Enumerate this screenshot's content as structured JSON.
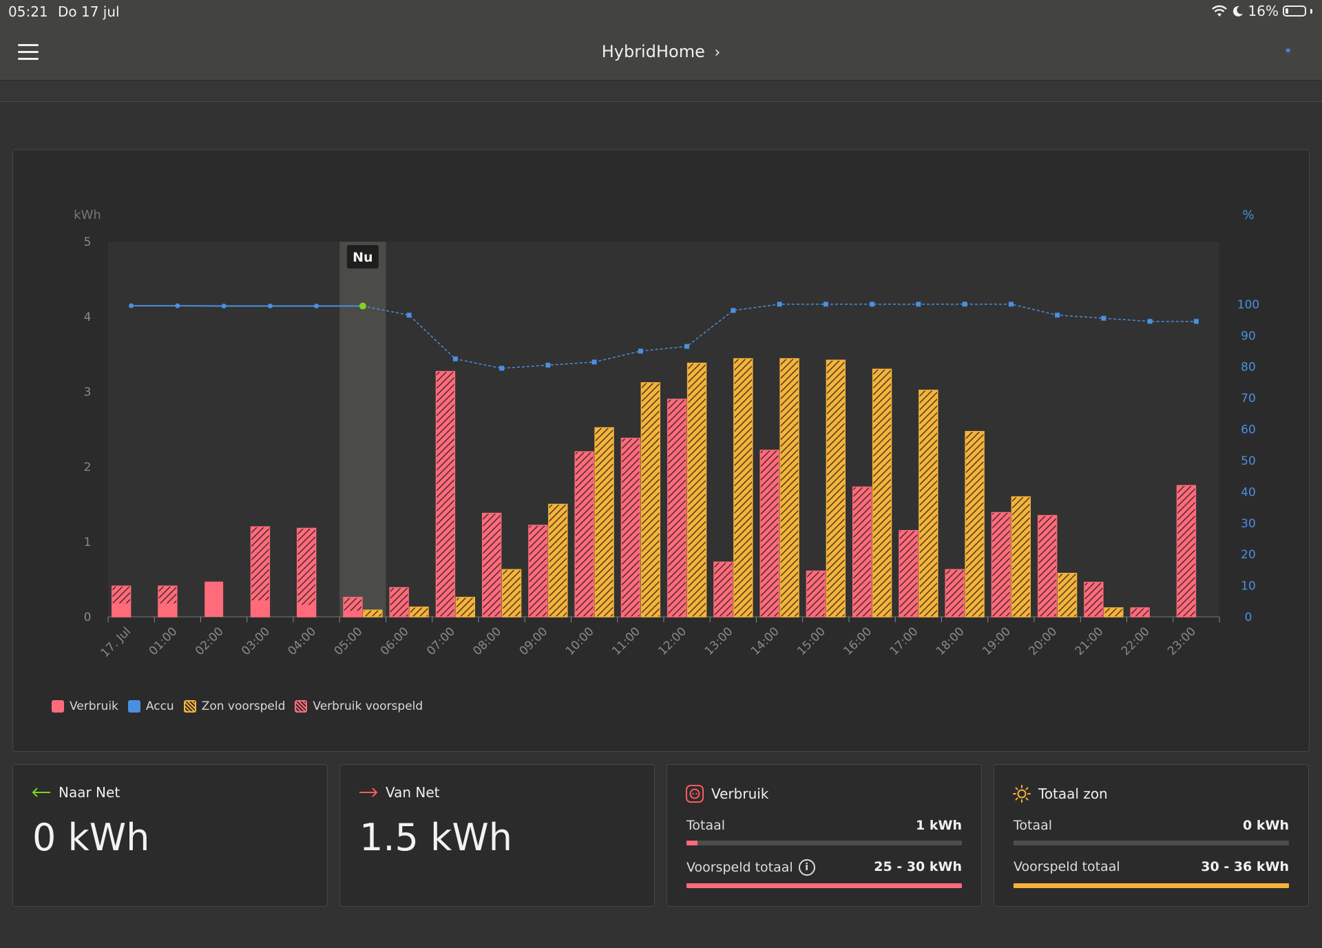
{
  "status": {
    "time": "05:21",
    "date": "Do 17 jul",
    "battery_pct": "16%",
    "battery_level": 0.16
  },
  "header": {
    "title": "HybridHome"
  },
  "chart_data": {
    "type": "bar",
    "ylabel_left": "kWh",
    "ylabel_right": "%",
    "ylim": [
      0,
      5
    ],
    "ylim_right": [
      0,
      120
    ],
    "yticks_left": [
      "0",
      "1",
      "2",
      "3",
      "4",
      "5"
    ],
    "yticks_right": [
      "0",
      "10",
      "20",
      "30",
      "40",
      "50",
      "60",
      "70",
      "80",
      "90",
      "100"
    ],
    "now_label": "Nu",
    "now_index": 5,
    "categories": [
      "17. Jul",
      "01:00",
      "02:00",
      "03:00",
      "04:00",
      "05:00",
      "06:00",
      "07:00",
      "08:00",
      "09:00",
      "10:00",
      "11:00",
      "12:00",
      "13:00",
      "14:00",
      "15:00",
      "16:00",
      "17:00",
      "18:00",
      "19:00",
      "20:00",
      "21:00",
      "22:00",
      "23:00"
    ],
    "series": [
      {
        "name": "Verbruik",
        "kind": "bar",
        "color": "#ff6b7a",
        "values": [
          0.18,
          0.18,
          0.47,
          0.22,
          0.16,
          0.08,
          0,
          0,
          0,
          0,
          0,
          0,
          0,
          0,
          0,
          0,
          0,
          0,
          0,
          0,
          0,
          0,
          0,
          0
        ]
      },
      {
        "name": "Accu",
        "kind": "line",
        "color": "#4a90e2",
        "values": [
          99.5,
          99.5,
          99.4,
          99.4,
          99.4,
          99.4,
          96.5,
          82.5,
          79.5,
          80.5,
          81.5,
          85,
          86.5,
          98,
          100,
          100,
          100,
          100,
          100,
          100,
          96.5,
          95.5,
          94.5,
          94.5
        ]
      },
      {
        "name": "Zon voorspeld",
        "kind": "bar",
        "color": "#f5b33b",
        "values": [
          0,
          0,
          0,
          0,
          0,
          0.09,
          0.13,
          0.26,
          0.63,
          1.5,
          2.52,
          3.12,
          3.38,
          3.44,
          3.44,
          3.42,
          3.3,
          3.02,
          2.47,
          1.6,
          0.58,
          0.12,
          0,
          0
        ]
      },
      {
        "name": "Verbruik voorspeld",
        "kind": "bar",
        "color": "#ff6b7a",
        "values": [
          0.41,
          0.41,
          0,
          1.2,
          1.18,
          0.26,
          0.39,
          3.27,
          1.38,
          1.22,
          2.2,
          2.38,
          2.9,
          0.73,
          2.22,
          0.61,
          1.73,
          1.15,
          0.63,
          1.39,
          1.35,
          0.46,
          0.12,
          1.75
        ]
      }
    ],
    "legend_position": "bottom-left",
    "grid": false
  },
  "legend": [
    {
      "label": "Verbruik",
      "color": "#ff6b7a",
      "pattern": false
    },
    {
      "label": "Accu",
      "color": "#4a90e2",
      "pattern": false
    },
    {
      "label": "Zon voorspeld",
      "color": "#f5b33b",
      "pattern": true
    },
    {
      "label": "Verbruik voorspeld",
      "color": "#ff6b7a",
      "pattern": true
    }
  ],
  "cards": {
    "naar_net": {
      "title": "Naar Net",
      "value": "0 kWh",
      "icon": "arrow-left-icon",
      "color": "#7ed321"
    },
    "van_net": {
      "title": "Van Net",
      "value": "1.5 kWh",
      "icon": "arrow-right-icon",
      "color": "#ff5a5f"
    },
    "verbruik": {
      "title": "Verbruik",
      "icon": "socket-icon",
      "totaal_label": "Totaal",
      "totaal_value": "1 kWh",
      "totaal_fill": 0.04,
      "voorspeld_label": "Voorspeld totaal",
      "voorspeld_value": "25 - 30 kWh",
      "voorspeld_fill": 1.0,
      "color": "#ff6b7a"
    },
    "totaal_zon": {
      "title": "Totaal zon",
      "icon": "sun-icon",
      "totaal_label": "Totaal",
      "totaal_value": "0 kWh",
      "totaal_fill": 0,
      "voorspeld_label": "Voorspeld totaal",
      "voorspeld_value": "30 - 36 kWh",
      "voorspeld_fill": 1.0,
      "color": "#f5b33b"
    }
  }
}
